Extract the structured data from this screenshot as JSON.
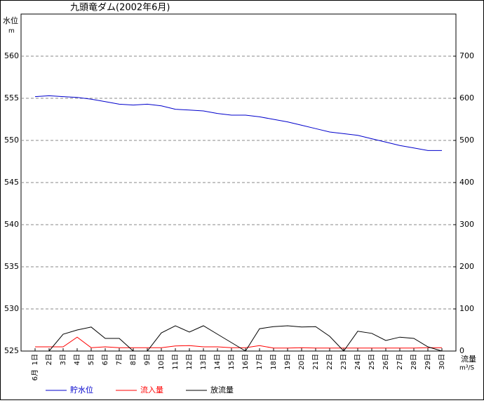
{
  "chart_data": {
    "type": "line",
    "title": "九頭竜ダム(2002年6月)",
    "y_label": "水位",
    "y_unit": "m",
    "y2_label": "流量",
    "y2_unit": "m³/S",
    "month_label": "6月",
    "categories": [
      "1日",
      "2日",
      "3日",
      "4日",
      "5日",
      "6日",
      "7日",
      "8日",
      "9日",
      "10日",
      "11日",
      "12日",
      "13日",
      "14日",
      "15日",
      "16日",
      "17日",
      "18日",
      "19日",
      "20日",
      "21日",
      "22日",
      "23日",
      "24日",
      "25日",
      "26日",
      "27日",
      "28日",
      "29日",
      "30日"
    ],
    "series": [
      {
        "name": "貯水位",
        "color": "#0000cc",
        "values": [
          555.2,
          555.3,
          555.2,
          555.1,
          554.9,
          554.6,
          554.3,
          554.2,
          554.3,
          554.1,
          553.7,
          553.6,
          553.5,
          553.2,
          553.0,
          553.0,
          552.8,
          552.5,
          552.2,
          551.8,
          551.4,
          551.0,
          550.8,
          550.6,
          550.2,
          549.8,
          549.4,
          549.1,
          548.8,
          548.8
        ]
      },
      {
        "name": "流入量",
        "color": "#ff0000",
        "axis": "y2",
        "values": [
          10,
          10,
          10,
          33,
          8,
          10,
          8,
          8,
          8,
          8,
          12,
          13,
          10,
          10,
          8,
          8,
          13,
          7,
          7,
          8,
          7,
          7,
          7,
          7,
          7,
          7,
          7,
          7,
          8,
          8
        ]
      },
      {
        "name": "放流量",
        "color": "#000000",
        "axis": "y2",
        "values": [
          0,
          0,
          40,
          50,
          57,
          30,
          30,
          0,
          0,
          43,
          60,
          45,
          60,
          40,
          20,
          0,
          53,
          58,
          60,
          57,
          58,
          35,
          0,
          47,
          42,
          25,
          33,
          30,
          10,
          0
        ]
      }
    ],
    "ylim": [
      525,
      565
    ],
    "yticks": [
      525,
      530,
      535,
      540,
      545,
      550,
      555,
      560
    ],
    "y2lim": [
      0,
      800
    ],
    "y2ticks": [
      0,
      100,
      200,
      300,
      400,
      500,
      600,
      700
    ],
    "grid": true
  }
}
